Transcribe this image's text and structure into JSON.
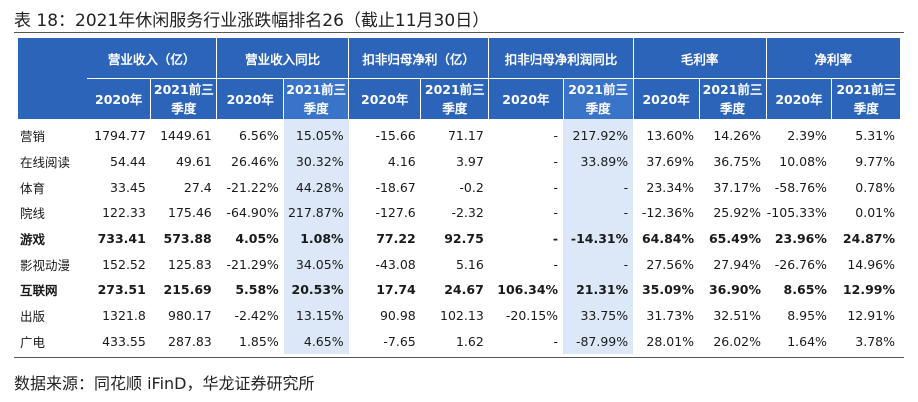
{
  "title": "表 18：2021年休闲服务行业涨跌幅排名26（截止11月30日）",
  "source": "数据来源：同花顺 iFinD，华龙证券研究所",
  "highlight_color": "#dce8f7",
  "header_color": "#2b64b8",
  "groups": [
    "营业收入（亿）",
    "营业收入同比",
    "扣非归母净利（亿）",
    "扣非归母净利润同比",
    "毛利率",
    "净利率"
  ],
  "sub_a": "2020年",
  "sub_b_line1": "2021前三",
  "sub_b_line2": "季度",
  "rows": [
    {
      "name": "营销",
      "bold": false,
      "values": [
        "1794.77",
        "1449.61",
        "6.56%",
        "15.05%",
        "-15.66",
        "71.17",
        "-",
        "217.92%",
        "13.60%",
        "14.26%",
        "2.39%",
        "5.31%"
      ]
    },
    {
      "name": "在线阅读",
      "bold": false,
      "values": [
        "54.44",
        "49.61",
        "26.46%",
        "30.32%",
        "4.16",
        "3.97",
        "-",
        "33.89%",
        "37.69%",
        "36.75%",
        "10.08%",
        "9.77%"
      ]
    },
    {
      "name": "体育",
      "bold": false,
      "values": [
        "33.45",
        "27.4",
        "-21.22%",
        "44.28%",
        "-18.67",
        "-0.2",
        "-",
        "-",
        "23.34%",
        "37.17%",
        "-58.76%",
        "0.78%"
      ]
    },
    {
      "name": "院线",
      "bold": false,
      "values": [
        "122.33",
        "175.46",
        "-64.90%",
        "217.87%",
        "-127.6",
        "-2.32",
        "-",
        "-",
        "-12.36%",
        "25.92%",
        "-105.33%",
        "0.01%"
      ]
    },
    {
      "name": "游戏",
      "bold": true,
      "values": [
        "733.41",
        "573.88",
        "4.05%",
        "1.08%",
        "77.22",
        "92.75",
        "-",
        "-14.31%",
        "64.84%",
        "65.49%",
        "23.96%",
        "24.87%"
      ]
    },
    {
      "name": "影视动漫",
      "bold": false,
      "values": [
        "152.52",
        "125.83",
        "-21.29%",
        "34.05%",
        "-43.08",
        "5.16",
        "-",
        "-",
        "27.56%",
        "27.94%",
        "-26.76%",
        "14.96%"
      ]
    },
    {
      "name": "互联网",
      "bold": true,
      "values": [
        "273.51",
        "215.69",
        "5.58%",
        "20.53%",
        "17.74",
        "24.67",
        "106.34%",
        "21.31%",
        "35.09%",
        "36.90%",
        "8.65%",
        "12.99%"
      ]
    },
    {
      "name": "出版",
      "bold": false,
      "values": [
        "1321.8",
        "980.17",
        "-2.42%",
        "13.15%",
        "90.98",
        "102.13",
        "-20.15%",
        "33.75%",
        "31.73%",
        "32.51%",
        "8.95%",
        "12.91%"
      ]
    },
    {
      "name": "广电",
      "bold": false,
      "values": [
        "433.55",
        "287.83",
        "1.85%",
        "4.65%",
        "-7.65",
        "1.62",
        "-",
        "-87.99%",
        "28.01%",
        "26.02%",
        "1.64%",
        "3.78%"
      ]
    }
  ]
}
